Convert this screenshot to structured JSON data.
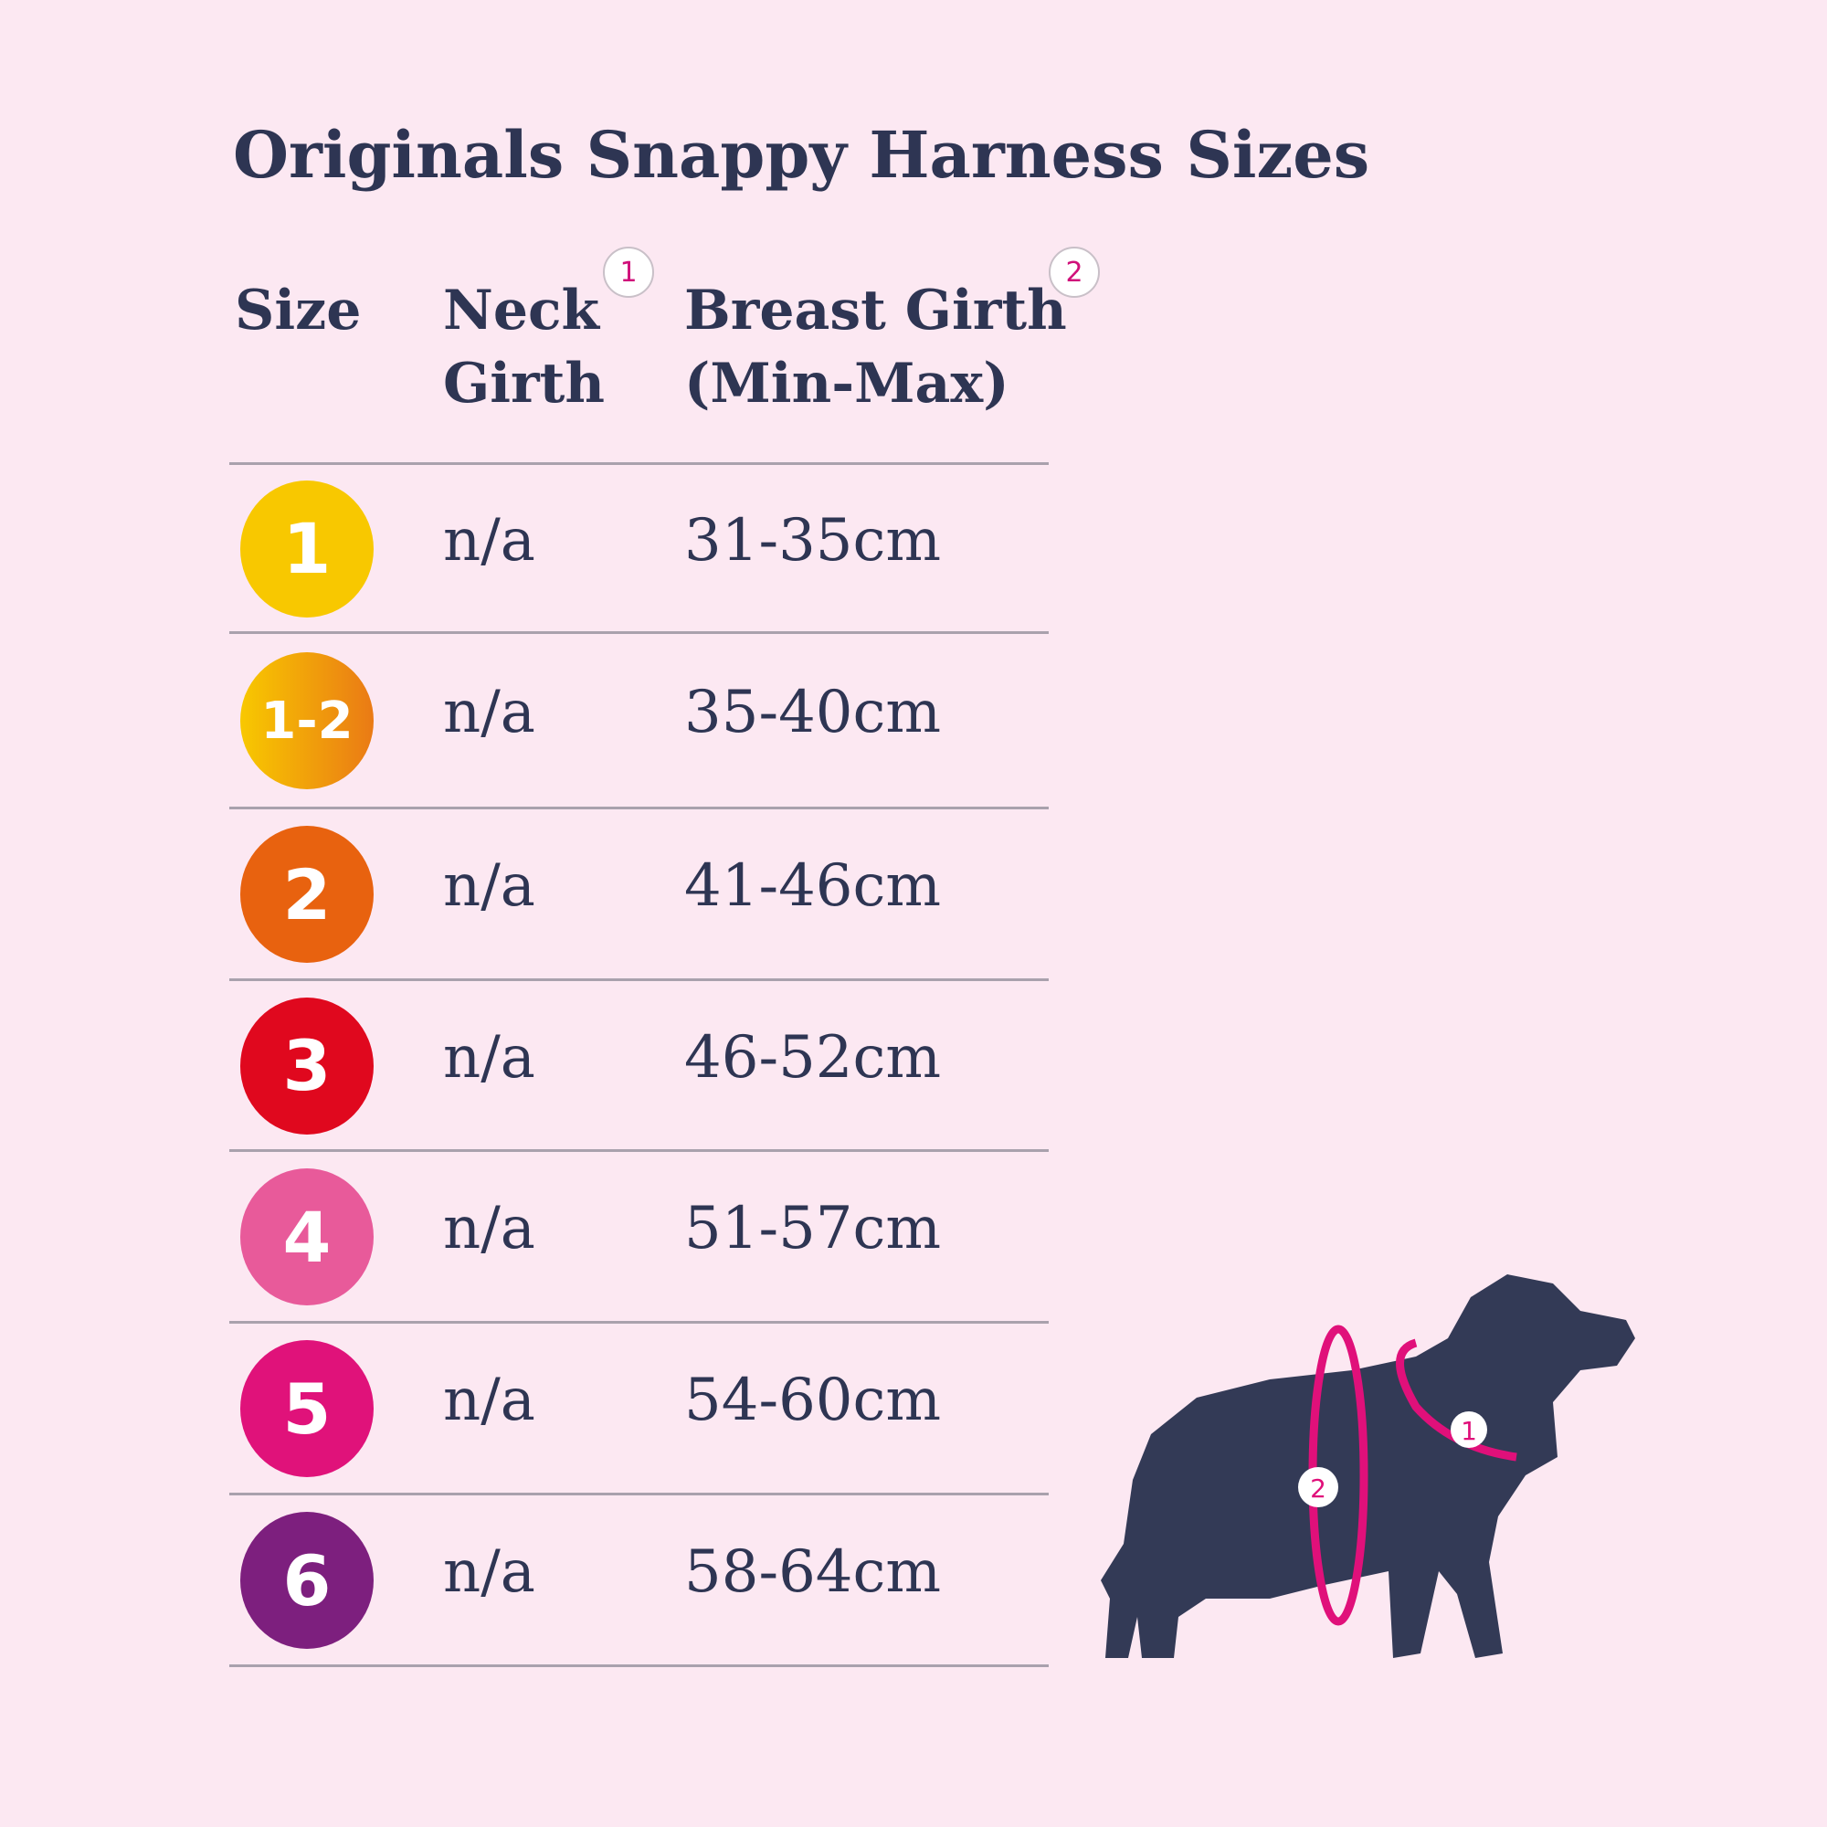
{
  "title": "Originals Snappy Harness Sizes",
  "headers": {
    "size": "Size",
    "neck_line1": "Neck",
    "neck_line2": "Girth",
    "neck_marker": "1",
    "breast_line1": "Breast Girth",
    "breast_line2": "(Min-Max)",
    "breast_marker": "2"
  },
  "rows": [
    {
      "size": "1",
      "neck": "n/a",
      "breast": "31-35cm",
      "color": "#f8c800"
    },
    {
      "size": "1-2",
      "neck": "n/a",
      "breast": "35-40cm",
      "color": "#f39a10"
    },
    {
      "size": "2",
      "neck": "n/a",
      "breast": "41-46cm",
      "color": "#e8620f"
    },
    {
      "size": "3",
      "neck": "n/a",
      "breast": "46-52cm",
      "color": "#e0081e"
    },
    {
      "size": "4",
      "neck": "n/a",
      "breast": "51-57cm",
      "color": "#e85a9a"
    },
    {
      "size": "5",
      "neck": "n/a",
      "breast": "54-60cm",
      "color": "#e0127a"
    },
    {
      "size": "6",
      "neck": "n/a",
      "breast": "58-64cm",
      "color": "#7d1f7e"
    }
  ],
  "diagram": {
    "neck_marker": "1",
    "breast_marker": "2",
    "dog_color": "#333a56",
    "accent": "#e0107a"
  }
}
